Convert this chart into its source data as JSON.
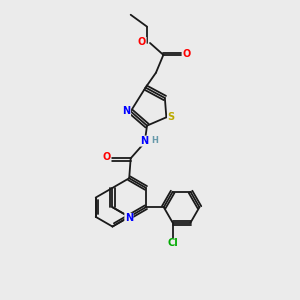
{
  "background_color": "#ebebeb",
  "figure_size": [
    3.0,
    3.0
  ],
  "dpi": 100,
  "colors": {
    "C": "#1a1a1a",
    "N": "#0000ff",
    "O": "#ff0000",
    "S": "#bbaa00",
    "Cl": "#00aa00",
    "H": "#6699aa"
  },
  "lw": 1.3,
  "fs": 7.0
}
